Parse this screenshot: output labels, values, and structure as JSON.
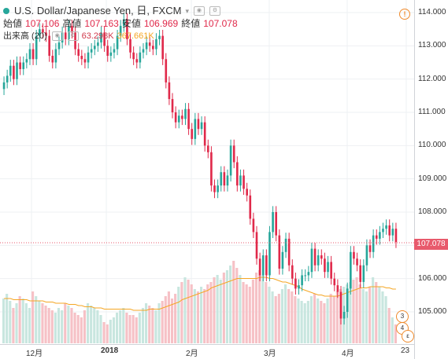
{
  "header": {
    "title": "U.S. Dollar/Japanese Yen, 日, FXCM",
    "open_label": "始値",
    "open_value": "107.106",
    "high_label": "高値",
    "high_value": "107.163",
    "low_label": "安値",
    "low_value": "106.969",
    "close_label": "終値",
    "close_value": "107.078",
    "volume_label": "出来高 (20)",
    "volume_value": "63.298K",
    "volume_ma_value": "367.661K"
  },
  "price_tag": "107.078",
  "badges": [
    "3",
    "4",
    "ε"
  ],
  "colors": {
    "up": "#26a69a",
    "down": "#e0294a",
    "vol_up": "#c8e6df",
    "vol_down": "#f6c1c6",
    "ma": "#f5a623"
  },
  "chart_data": {
    "type": "candlestick",
    "symbol": "USDJPY",
    "interval": "1D",
    "y_ticks": [
      "114.000",
      "113.000",
      "112.000",
      "111.000",
      "110.000",
      "109.000",
      "108.000",
      "107.000",
      "106.000",
      "105.000"
    ],
    "x_ticks": [
      "12月",
      "2018",
      "2月",
      "3月",
      "4月",
      "23"
    ],
    "ylim": [
      104.3,
      114.2
    ],
    "last_price": 107.078,
    "close": [
      111.9,
      112.1,
      112.4,
      112.0,
      112.5,
      112.3,
      112.5,
      112.6,
      112.9,
      112.6,
      113.3,
      113.5,
      113.4,
      113.3,
      112.7,
      112.5,
      112.9,
      113.1,
      113.4,
      113.2,
      113.6,
      113.4,
      112.9,
      112.7,
      112.6,
      112.5,
      112.8,
      112.9,
      113.0,
      113.1,
      113.4,
      113.0,
      112.7,
      112.8,
      112.9,
      113.3,
      113.6,
      113.8,
      113.2,
      112.8,
      112.6,
      112.5,
      112.8,
      112.9,
      113.1,
      113.0,
      112.9,
      113.2,
      113.3,
      112.6,
      111.9,
      111.4,
      111.0,
      110.7,
      110.9,
      110.8,
      111.1,
      110.5,
      110.2,
      110.8,
      110.5,
      110.7,
      110.0,
      109.8,
      108.8,
      108.6,
      108.8,
      109.2,
      108.8,
      109.1,
      110.0,
      109.5,
      108.8,
      109.1,
      108.7,
      108.5,
      107.8,
      107.4,
      106.6,
      106.1,
      106.7,
      106.1,
      107.4,
      108.0,
      107.3,
      106.3,
      106.8,
      107.2,
      106.4,
      106.0,
      105.7,
      105.8,
      106.1,
      106.1,
      106.2,
      106.9,
      106.4,
      106.7,
      106.6,
      106.2,
      106.5,
      106.0,
      105.8,
      105.6,
      104.8,
      105.0,
      105.7,
      106.8,
      106.6,
      106.4,
      105.9,
      106.4,
      107.0,
      106.8,
      107.3,
      107.2,
      107.4,
      107.5,
      107.6,
      107.3,
      107.5,
      107.1
    ],
    "volume": [
      38,
      42,
      36,
      30,
      34,
      40,
      38,
      34,
      30,
      44,
      40,
      36,
      34,
      32,
      30,
      28,
      26,
      30,
      28,
      34,
      32,
      30,
      26,
      24,
      22,
      28,
      34,
      32,
      30,
      28,
      24,
      18,
      16,
      20,
      22,
      26,
      28,
      30,
      26,
      24,
      24,
      22,
      26,
      30,
      34,
      32,
      30,
      28,
      34,
      36,
      40,
      44,
      38,
      42,
      48,
      52,
      56,
      54,
      50,
      46,
      44,
      48,
      46,
      50,
      52,
      56,
      58,
      54,
      60,
      62,
      66,
      70,
      64,
      58,
      52,
      50,
      48,
      54,
      60,
      62,
      58,
      52,
      48,
      44,
      40,
      42,
      46,
      50,
      46,
      44,
      40,
      38,
      36,
      34,
      36,
      40,
      42,
      38,
      36,
      34,
      38,
      42,
      40,
      44,
      46,
      48,
      50,
      52,
      54,
      56,
      50,
      46,
      44,
      48,
      56,
      52,
      48,
      44,
      40,
      30,
      22,
      16
    ],
    "volume_ma": [
      38,
      38,
      38,
      37,
      37,
      37,
      37,
      37,
      36,
      36,
      36,
      36,
      36,
      35,
      35,
      35,
      34,
      34,
      34,
      34,
      33,
      33,
      33,
      32,
      32,
      31,
      31,
      31,
      30,
      30,
      30,
      29,
      29,
      29,
      29,
      29,
      29,
      29,
      29,
      29,
      28,
      28,
      28,
      28,
      28,
      29,
      29,
      29,
      29,
      30,
      31,
      32,
      33,
      34,
      35,
      37,
      38,
      39,
      40,
      41,
      42,
      43,
      44,
      45,
      47,
      48,
      49,
      50,
      51,
      52,
      53,
      54,
      55,
      55,
      55,
      55,
      55,
      55,
      55,
      56,
      56,
      56,
      55,
      55,
      54,
      53,
      52,
      52,
      51,
      50,
      49,
      48,
      46,
      45,
      44,
      43,
      42,
      41,
      41,
      40,
      40,
      40,
      40,
      40,
      41,
      42,
      43,
      44,
      45,
      46,
      47,
      47,
      47,
      48,
      48,
      48,
      48,
      48,
      47,
      47,
      46,
      46
    ]
  }
}
